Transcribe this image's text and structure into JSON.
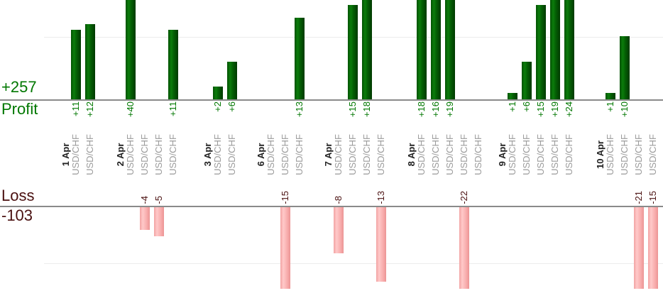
{
  "summary": {
    "profit_total": "+257",
    "profit_label": "Profit",
    "loss_label": "Loss",
    "loss_total": "-103"
  },
  "colors": {
    "profit_bar": "#0b7c0b",
    "profit_text": "#007700",
    "loss_bar": "#ffc9c9",
    "loss_text": "#4a1010",
    "date_text": "#222222",
    "instrument_text": "#9b9b9b",
    "axis_line": "#8a8a8a",
    "gridline": "#ececec"
  },
  "chart_data": {
    "type": "bar",
    "orientation": "vertical",
    "panels": [
      {
        "name": "Profit",
        "side": "up",
        "total": 257,
        "total_label": "+257",
        "gridline_value": 10,
        "visible_value_range": [
          0,
          16
        ]
      },
      {
        "name": "Loss",
        "side": "down",
        "total": -103,
        "total_label": "-103",
        "gridline_value": -10,
        "visible_value_range": [
          0,
          -14
        ]
      }
    ],
    "note_bars_clipped": "profit bars larger than ~16 are cut off at top of crop; loss bars larger than ~14 are cut off at panel bottom",
    "groups": [
      {
        "date": "1 Apr",
        "trades": [
          {
            "instrument": "USD/CHF",
            "value": 11
          },
          {
            "instrument": "USD/CHF",
            "value": 12
          }
        ]
      },
      {
        "date": "2 Apr",
        "trades": [
          {
            "instrument": "USD/CHF",
            "value": 40
          },
          {
            "instrument": "USD/CHF",
            "value": -4
          },
          {
            "instrument": "USD/CHF",
            "value": -5
          },
          {
            "instrument": "USD/CHF",
            "value": 11
          }
        ]
      },
      {
        "date": "3 Apr",
        "trades": [
          {
            "instrument": "USD/CHF",
            "value": 2
          },
          {
            "instrument": "USD/CHF",
            "value": 6
          }
        ]
      },
      {
        "date": "6 Apr",
        "trades": [
          {
            "instrument": "USD/CHF",
            "value": 0
          },
          {
            "instrument": "USD/CHF",
            "value": -15
          },
          {
            "instrument": "USD/CHF",
            "value": 13
          }
        ]
      },
      {
        "date": "7 Apr",
        "trades": [
          {
            "instrument": "USD/CHF",
            "value": -8
          },
          {
            "instrument": "USD/CHF",
            "value": 15
          },
          {
            "instrument": "USD/CHF",
            "value": 18
          },
          {
            "instrument": "USD/CHF",
            "value": -13
          }
        ]
      },
      {
        "date": "8 Apr",
        "trades": [
          {
            "instrument": "USD/CHF",
            "value": 18
          },
          {
            "instrument": "USD/CHF",
            "value": 16
          },
          {
            "instrument": "USD/CHF",
            "value": 19
          },
          {
            "instrument": "USD/CHF",
            "value": -22
          },
          {
            "instrument": "USD/CHF",
            "value": 0
          }
        ]
      },
      {
        "date": "9 Apr",
        "trades": [
          {
            "instrument": "USD/CHF",
            "value": 1
          },
          {
            "instrument": "USD/CHF",
            "value": 6
          },
          {
            "instrument": "USD/CHF",
            "value": 15
          },
          {
            "instrument": "USD/CHF",
            "value": 19
          },
          {
            "instrument": "USD/CHF",
            "value": 24
          }
        ]
      },
      {
        "date": "10 Apr",
        "trades": [
          {
            "instrument": "USD/CHF",
            "value": 1
          },
          {
            "instrument": "USD/CHF",
            "value": 10
          },
          {
            "instrument": "USD/CHF",
            "value": -21
          },
          {
            "instrument": "USD/CHF",
            "value": -15
          }
        ]
      }
    ]
  }
}
